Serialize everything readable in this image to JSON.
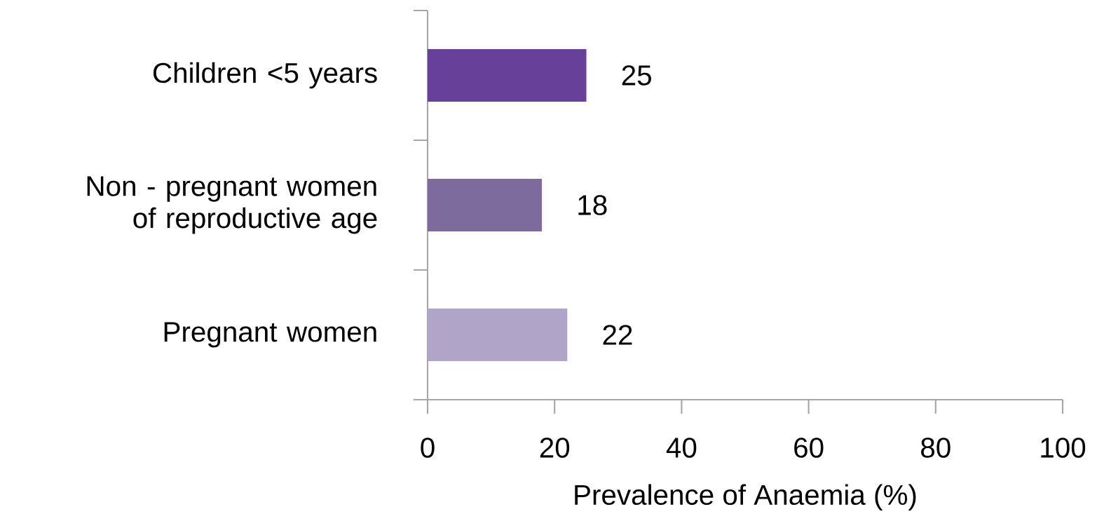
{
  "chart_data": {
    "type": "bar",
    "orientation": "horizontal",
    "xlabel": "Prevalence of Anaemia (%)",
    "categories": [
      "Children <5 years",
      "Non - pregnant women of reproductive age",
      "Pregnant women"
    ],
    "values": [
      25,
      18,
      22
    ],
    "colors": [
      "#674099",
      "#7d6b9e",
      "#b0a5c8"
    ],
    "xlim": [
      0,
      100
    ],
    "xticks": [
      0,
      20,
      40,
      60,
      80,
      100
    ],
    "data_labels": true
  }
}
